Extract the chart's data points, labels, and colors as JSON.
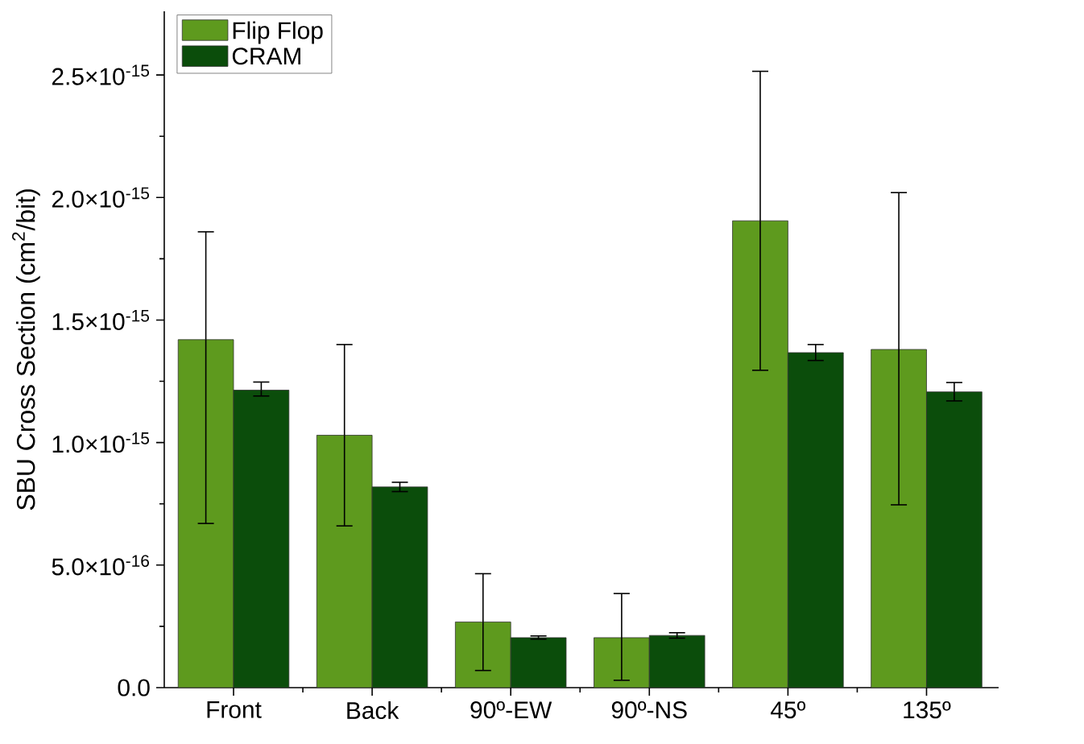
{
  "chart_data": {
    "type": "bar",
    "ylabel": "SBU Cross Section (cm$^{2}$/bit)",
    "categories": [
      "Front",
      "Back",
      "90º-EW",
      "90º-NS",
      "45º",
      "135º"
    ],
    "series": [
      {
        "name": "Flip Flop",
        "color": "#5e9a1e",
        "values": [
          1.42e-15,
          1.03e-15,
          2.68e-16,
          2.04e-16,
          1.905e-15,
          1.38e-15
        ],
        "errors": [
          [
            6.7e-16,
            1.86e-15
          ],
          [
            6.6e-16,
            1.4e-15
          ],
          [
            7e-17,
            4.65e-16
          ],
          [
            3e-17,
            3.84e-16
          ],
          [
            1.295e-15,
            2.515e-15
          ],
          [
            7.46e-16,
            2.02e-15
          ]
        ]
      },
      {
        "name": "CRAM",
        "color": "#0b4d0b",
        "values": [
          1.214e-15,
          8.19e-16,
          2.04e-16,
          2.13e-16,
          1.367e-15,
          1.207e-15
        ],
        "errors": [
          [
            1.19e-15,
            1.247e-15
          ],
          [
            8e-16,
            8.38e-16
          ],
          [
            1.98e-16,
            2.11e-16
          ],
          [
            2.02e-16,
            2.24e-16
          ],
          [
            1.335e-15,
            1.4e-15
          ],
          [
            1.17e-15,
            1.245e-15
          ]
        ]
      }
    ],
    "ylim": [
      0,
      2.76e-15
    ],
    "yticks": [
      {
        "value": 0,
        "label": "0.0"
      },
      {
        "value": 5e-16,
        "label": "5.0×10$^{-16}$"
      },
      {
        "value": 1e-15,
        "label": "1.0×10$^{-15}$"
      },
      {
        "value": 1.5e-15,
        "label": "1.5×10$^{-15}$"
      },
      {
        "value": 2e-15,
        "label": "2.0×10$^{-15}$"
      },
      {
        "value": 2.5e-15,
        "label": "2.5×10$^{-15}$"
      }
    ],
    "legend": "top left"
  }
}
